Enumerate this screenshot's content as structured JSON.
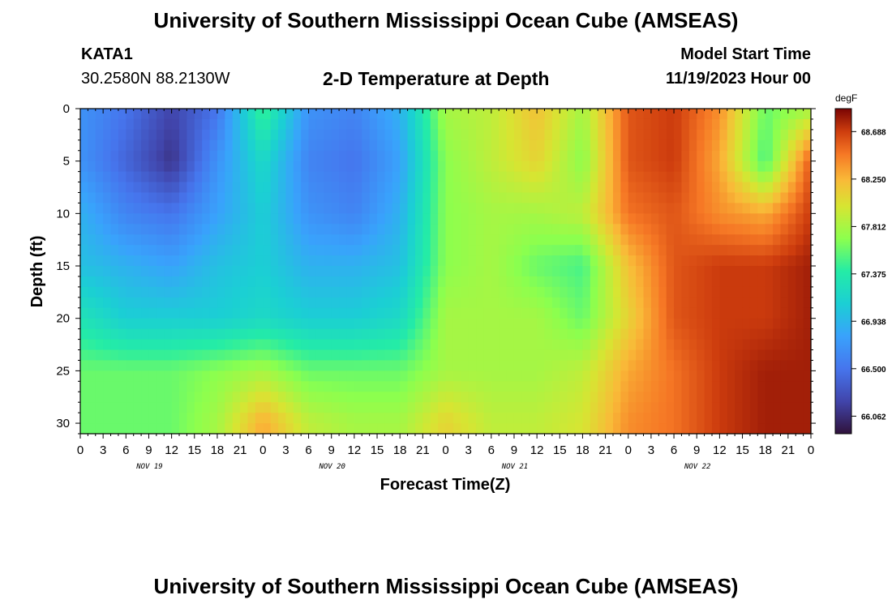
{
  "header": {
    "main_title": "University of Southern Mississippi Ocean Cube (AMSEAS)",
    "station_id": "KATA1",
    "station_coords": "30.2580N  88.2130W",
    "plot_title": "2-D Temperature at Depth",
    "model_start_label": "Model Start Time",
    "model_start_value": "11/19/2023 Hour 00"
  },
  "footer": {
    "repeat_title": "University of Southern Mississippi Ocean Cube (AMSEAS)"
  },
  "chart_data": {
    "type": "heatmap",
    "title": "2-D Temperature at Depth",
    "xlabel": "Forecast Time(Z)",
    "ylabel": "Depth (ft)",
    "x_tick_labels": [
      "0",
      "3",
      "6",
      "9",
      "12",
      "15",
      "18",
      "21",
      "0",
      "3",
      "6",
      "9",
      "12",
      "15",
      "18",
      "21",
      "0",
      "3",
      "6",
      "9",
      "12",
      "15",
      "18",
      "21",
      "0",
      "3",
      "6",
      "9",
      "12",
      "15",
      "18",
      "21",
      "0"
    ],
    "x_dates": [
      {
        "label": "NOV 19",
        "hour": 9
      },
      {
        "label": "NOV 20",
        "hour": 33
      },
      {
        "label": "NOV 21",
        "hour": 57
      },
      {
        "label": "NOV 22",
        "hour": 81
      }
    ],
    "xlim": [
      0,
      96
    ],
    "ylim": [
      0,
      31
    ],
    "y_reversed": true,
    "y_ticks": [
      0,
      5,
      10,
      15,
      20,
      25,
      30
    ],
    "colorbar": {
      "unit": "degF",
      "min": 65.9,
      "max": 68.9,
      "tick_values": [
        68.688,
        68.25,
        67.812,
        67.375,
        66.938,
        66.5,
        66.062
      ],
      "tick_labels": [
        "68.688",
        "68.250",
        "67.812",
        "67.375",
        "66.938",
        "66.500",
        "66.062"
      ],
      "colormap": "turbo"
    },
    "depths_ft": [
      0,
      5,
      10,
      15,
      20,
      25,
      30
    ],
    "times_hr": [
      0,
      6,
      12,
      18,
      24,
      30,
      36,
      42,
      48,
      54,
      60,
      66,
      72,
      78,
      84,
      90,
      96
    ],
    "values_degF": [
      [
        66.7,
        66.5,
        66.2,
        66.5,
        67.5,
        66.7,
        66.6,
        66.9,
        67.8,
        67.9,
        68.2,
        67.8,
        68.6,
        68.7,
        68.4,
        67.6,
        67.8
      ],
      [
        66.7,
        66.4,
        66.1,
        66.7,
        67.2,
        66.6,
        66.5,
        66.8,
        67.7,
        67.9,
        68.1,
        67.7,
        68.6,
        68.7,
        68.3,
        67.5,
        68.6
      ],
      [
        66.9,
        66.6,
        66.5,
        66.8,
        67.1,
        66.7,
        66.6,
        66.9,
        67.7,
        67.8,
        67.8,
        67.9,
        68.5,
        68.6,
        68.4,
        68.3,
        68.7
      ],
      [
        67.0,
        66.9,
        66.8,
        67.0,
        67.1,
        66.9,
        66.9,
        67.0,
        67.7,
        67.8,
        67.6,
        67.5,
        68.2,
        68.6,
        68.7,
        68.7,
        68.8
      ],
      [
        67.3,
        67.1,
        67.1,
        67.1,
        67.2,
        67.1,
        67.1,
        67.2,
        67.8,
        67.8,
        67.8,
        67.6,
        68.1,
        68.6,
        68.7,
        68.7,
        68.8
      ],
      [
        67.6,
        67.6,
        67.6,
        67.7,
        67.8,
        67.6,
        67.6,
        67.6,
        67.8,
        67.8,
        67.8,
        67.9,
        68.3,
        68.5,
        68.7,
        68.8,
        68.8
      ],
      [
        67.6,
        67.6,
        67.6,
        67.8,
        68.3,
        67.9,
        67.8,
        67.8,
        68.1,
        67.9,
        67.9,
        68.0,
        68.4,
        68.5,
        68.7,
        68.8,
        68.8
      ]
    ]
  }
}
